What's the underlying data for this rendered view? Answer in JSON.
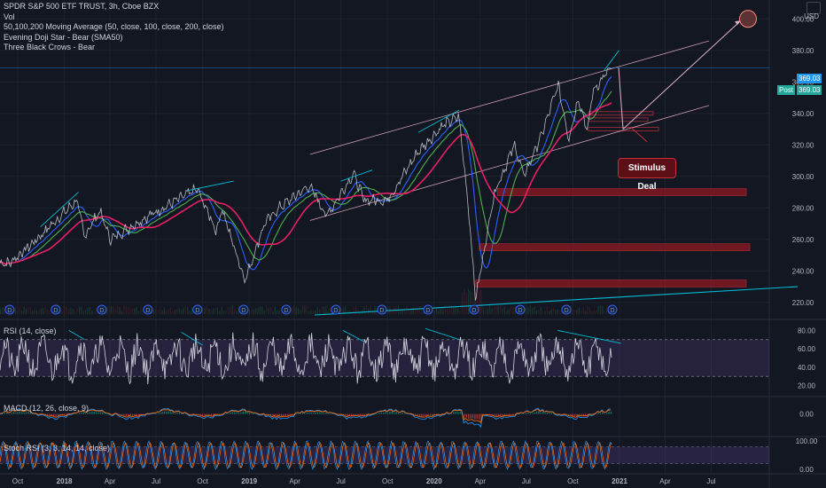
{
  "legend": {
    "symbol": "SPDR S&P 500 ETF TRUST, 3h, Cboe BZX",
    "volume": "Vol",
    "ma": "50,100,200 Moving Average (50, close, 100, close, 200, close)",
    "pattern1": "Evening Doji Star - Bear (SMA50)",
    "pattern2": "Three Black Crows - Bear"
  },
  "currency": "USD",
  "price_tags": {
    "last": "369.03",
    "post_label": "Post",
    "post": "369.03"
  },
  "annotation": {
    "stimulus": "Stimulus Deal"
  },
  "dividend_marker": "D",
  "panes": {
    "rsi": "RSI (14, close)",
    "macd": "MACD (12, 26, close, 9)",
    "stoch": "Stoch RSI (3, 3, 14, 14, close)"
  },
  "colors": {
    "background": "#131722",
    "price_line": "#2196f3",
    "ma50": "#2962ff",
    "ma100": "#4caf50",
    "ma200": "#e91e63",
    "channel": "#f8bbd0",
    "trend_blue": "#00bcd4",
    "support_zone": "#801922",
    "rsi": "#d1d4dc",
    "rsi_band": "#7e57c2",
    "macd": "#2196f3",
    "signal": "#ff6d00"
  },
  "chart_data": {
    "type": "line",
    "x_ticks": [
      "Oct",
      "2018",
      "Apr",
      "Jul",
      "Oct",
      "2019",
      "Apr",
      "Jul",
      "Oct",
      "2020",
      "Apr",
      "Jul",
      "Oct",
      "2021",
      "Apr",
      "Jul"
    ],
    "price_axis": {
      "ticks": [
        220,
        240,
        260,
        280,
        300,
        320,
        340,
        360,
        380,
        400
      ],
      "range": [
        212,
        412
      ]
    },
    "rsi_axis": {
      "ticks": [
        20,
        40,
        60,
        80
      ],
      "bands": [
        30,
        70
      ],
      "range": [
        10,
        90
      ]
    },
    "macd_axis": {
      "ticks": [
        -10,
        0
      ],
      "range": [
        -20,
        15
      ]
    },
    "stoch_axis": {
      "ticks": [
        0,
        100
      ],
      "bands": [
        20,
        80
      ],
      "range": [
        -10,
        110
      ]
    },
    "series": [
      {
        "name": "SPY",
        "x": [
          "2017-09-15",
          "2017-11-01",
          "2018-01-26",
          "2018-02-09",
          "2018-03-12",
          "2018-04-02",
          "2018-06-01",
          "2018-08-01",
          "2018-09-20",
          "2018-10-29",
          "2018-11-07",
          "2018-12-24",
          "2019-01-31",
          "2019-03-01",
          "2019-04-30",
          "2019-06-03",
          "2019-07-26",
          "2019-08-15",
          "2019-10-01",
          "2019-11-29",
          "2020-01-17",
          "2020-02-19",
          "2020-03-09",
          "2020-03-23",
          "2020-04-29",
          "2020-06-08",
          "2020-06-26",
          "2020-07-31",
          "2020-09-02",
          "2020-09-23",
          "2020-10-12",
          "2020-10-30",
          "2020-11-09",
          "2020-12-08",
          "2020-12-17"
        ],
        "values": [
          245,
          258,
          285,
          262,
          278,
          260,
          272,
          283,
          292,
          265,
          280,
          234,
          270,
          280,
          294,
          275,
          302,
          285,
          285,
          315,
          332,
          338,
          280,
          222,
          290,
          320,
          300,
          326,
          358,
          324,
          350,
          328,
          354,
          366,
          369
        ]
      }
    ],
    "annotations": [
      "Stimulus Deal"
    ]
  }
}
